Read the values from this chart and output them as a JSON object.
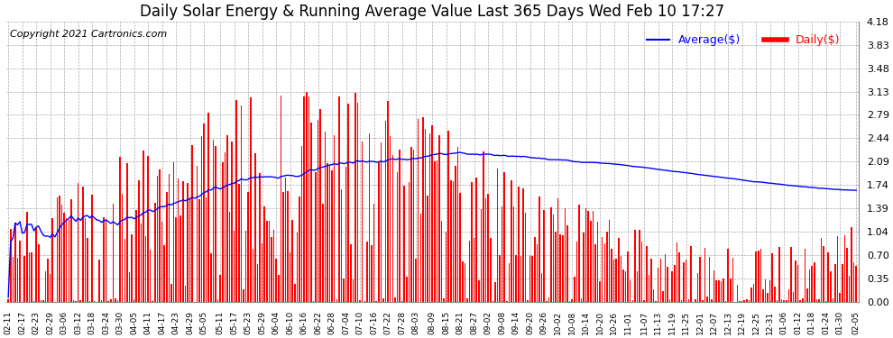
{
  "title": "Daily Solar Energy & Running Average Value Last 365 Days Wed Feb 10 17:27",
  "copyright": "Copyright 2021 Cartronics.com",
  "legend_avg": "Average($)",
  "legend_daily": "Daily($)",
  "bar_color": "#FF0000",
  "avg_line_color": "#0000FF",
  "background_color": "#FFFFFF",
  "grid_color": "#AAAAAA",
  "yticks": [
    0.0,
    0.35,
    0.7,
    1.04,
    1.39,
    1.74,
    2.09,
    2.44,
    2.79,
    3.13,
    3.48,
    3.83,
    4.18
  ],
  "ylim": [
    0.0,
    4.18
  ],
  "x_labels": [
    "02-11",
    "02-17",
    "02-23",
    "02-29",
    "03-06",
    "03-12",
    "03-18",
    "03-24",
    "03-30",
    "04-05",
    "04-11",
    "04-17",
    "04-23",
    "04-29",
    "05-05",
    "05-11",
    "05-17",
    "05-23",
    "05-29",
    "06-04",
    "06-10",
    "06-16",
    "06-22",
    "06-28",
    "07-04",
    "07-10",
    "07-16",
    "07-22",
    "07-28",
    "08-03",
    "08-09",
    "08-15",
    "08-21",
    "08-27",
    "09-02",
    "09-08",
    "09-14",
    "09-20",
    "09-26",
    "10-02",
    "10-08",
    "10-14",
    "10-20",
    "10-26",
    "11-01",
    "11-07",
    "11-13",
    "11-19",
    "11-25",
    "12-01",
    "12-07",
    "12-13",
    "12-19",
    "12-25",
    "12-31",
    "01-06",
    "01-12",
    "01-18",
    "01-24",
    "01-30",
    "02-05"
  ],
  "title_fontsize": 12,
  "copyright_fontsize": 8,
  "legend_fontsize": 9,
  "tick_fontsize": 8
}
